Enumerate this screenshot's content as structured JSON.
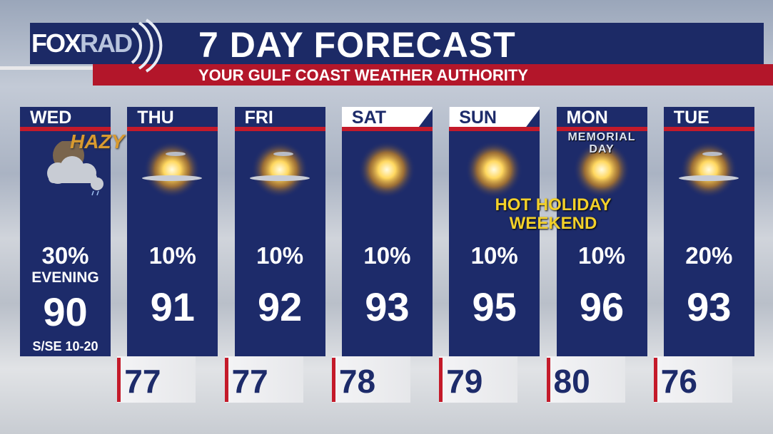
{
  "header": {
    "logo": "FOXRAD",
    "title": "7 DAY FORECAST",
    "subtitle": "YOUR GULF COAST WEATHER AUTHORITY"
  },
  "colors": {
    "navy": "#1d2b6a",
    "red": "#c41a2a",
    "yellow": "#f2d02a"
  },
  "days": [
    {
      "day": "WED",
      "icon": "cloud-rain-icon",
      "precip": "30%",
      "note": "EVENING",
      "high": "90",
      "wind": "S/SE 10-20",
      "tag": "HAZY"
    },
    {
      "day": "THU",
      "icon": "sun-clouds-icon",
      "precip": "10%",
      "high": "91",
      "low": "77"
    },
    {
      "day": "FRI",
      "icon": "sun-clouds-icon",
      "precip": "10%",
      "high": "92",
      "low": "77"
    },
    {
      "day": "SAT",
      "icon": "sun-icon",
      "precip": "10%",
      "high": "93",
      "low": "78"
    },
    {
      "day": "SUN",
      "icon": "sun-icon",
      "precip": "10%",
      "high": "95",
      "low": "79"
    },
    {
      "day": "MON",
      "icon": "sun-icon",
      "precip": "10%",
      "high": "96",
      "low": "80",
      "tag": "MEMORIAL DAY"
    },
    {
      "day": "TUE",
      "icon": "sun-clouds-icon",
      "precip": "20%",
      "high": "93",
      "low": "76"
    }
  ],
  "callout": {
    "line1": "HOT HOLIDAY",
    "line2": "WEEKEND"
  }
}
